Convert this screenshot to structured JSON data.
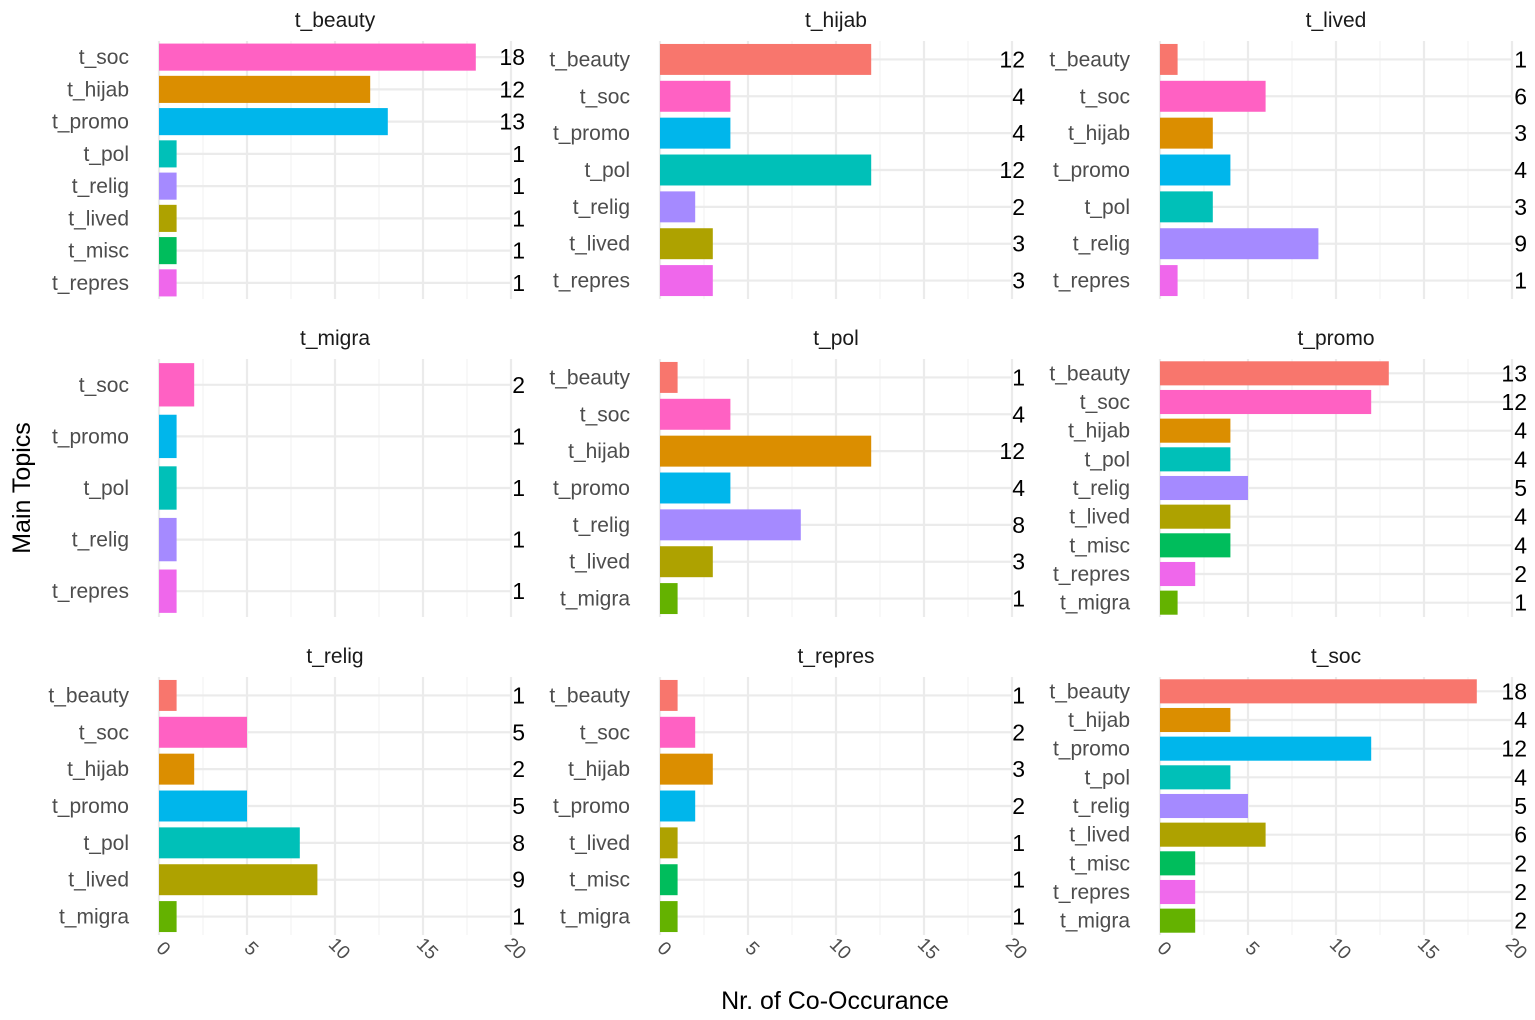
{
  "colors": {
    "t_beauty": "#F8766D",
    "t_soc": "#FF61C3",
    "t_hijab": "#DB8E00",
    "t_promo": "#00B6EB",
    "t_pol": "#00C0B8",
    "t_relig": "#A58AFF",
    "t_lived": "#AEA200",
    "t_misc": "#00BD5C",
    "t_repres": "#EF67EB",
    "t_migra": "#64B200"
  },
  "chart_data": {
    "type": "bar",
    "orientation": "horizontal",
    "xlabel": "Nr. of Co-Occurance",
    "ylabel": "Main Topics",
    "xlim": [
      0,
      20
    ],
    "xticks": [
      "0",
      "5",
      "10",
      "15",
      "20"
    ],
    "grid": true,
    "legend": "none",
    "facets": [
      {
        "title": "t_beauty",
        "categories": [
          "t_soc",
          "t_hijab",
          "t_promo",
          "t_pol",
          "t_relig",
          "t_lived",
          "t_misc",
          "t_repres"
        ],
        "values": [
          18,
          12,
          13,
          1,
          1,
          1,
          1,
          1
        ]
      },
      {
        "title": "t_hijab",
        "categories": [
          "t_beauty",
          "t_soc",
          "t_promo",
          "t_pol",
          "t_relig",
          "t_lived",
          "t_repres"
        ],
        "values": [
          12,
          4,
          4,
          12,
          2,
          3,
          3
        ]
      },
      {
        "title": "t_lived",
        "categories": [
          "t_beauty",
          "t_soc",
          "t_hijab",
          "t_promo",
          "t_pol",
          "t_relig",
          "t_repres"
        ],
        "values": [
          1,
          6,
          3,
          4,
          3,
          9,
          1
        ]
      },
      {
        "title": "t_migra",
        "categories": [
          "t_soc",
          "t_promo",
          "t_pol",
          "t_relig",
          "t_repres"
        ],
        "values": [
          2,
          1,
          1,
          1,
          1
        ]
      },
      {
        "title": "t_pol",
        "categories": [
          "t_beauty",
          "t_soc",
          "t_hijab",
          "t_promo",
          "t_relig",
          "t_lived",
          "t_migra"
        ],
        "values": [
          1,
          4,
          12,
          4,
          8,
          3,
          1
        ]
      },
      {
        "title": "t_promo",
        "categories": [
          "t_beauty",
          "t_soc",
          "t_hijab",
          "t_pol",
          "t_relig",
          "t_lived",
          "t_misc",
          "t_repres",
          "t_migra"
        ],
        "values": [
          13,
          12,
          4,
          4,
          5,
          4,
          4,
          2,
          1
        ]
      },
      {
        "title": "t_relig",
        "categories": [
          "t_beauty",
          "t_soc",
          "t_hijab",
          "t_promo",
          "t_pol",
          "t_lived",
          "t_migra"
        ],
        "values": [
          1,
          5,
          2,
          5,
          8,
          9,
          1
        ]
      },
      {
        "title": "t_repres",
        "categories": [
          "t_beauty",
          "t_soc",
          "t_hijab",
          "t_promo",
          "t_lived",
          "t_misc",
          "t_migra"
        ],
        "values": [
          1,
          2,
          3,
          2,
          1,
          1,
          1
        ]
      },
      {
        "title": "t_soc",
        "categories": [
          "t_beauty",
          "t_hijab",
          "t_promo",
          "t_pol",
          "t_relig",
          "t_lived",
          "t_misc",
          "t_repres",
          "t_migra"
        ],
        "values": [
          18,
          4,
          12,
          4,
          5,
          6,
          2,
          2,
          2
        ]
      }
    ]
  }
}
